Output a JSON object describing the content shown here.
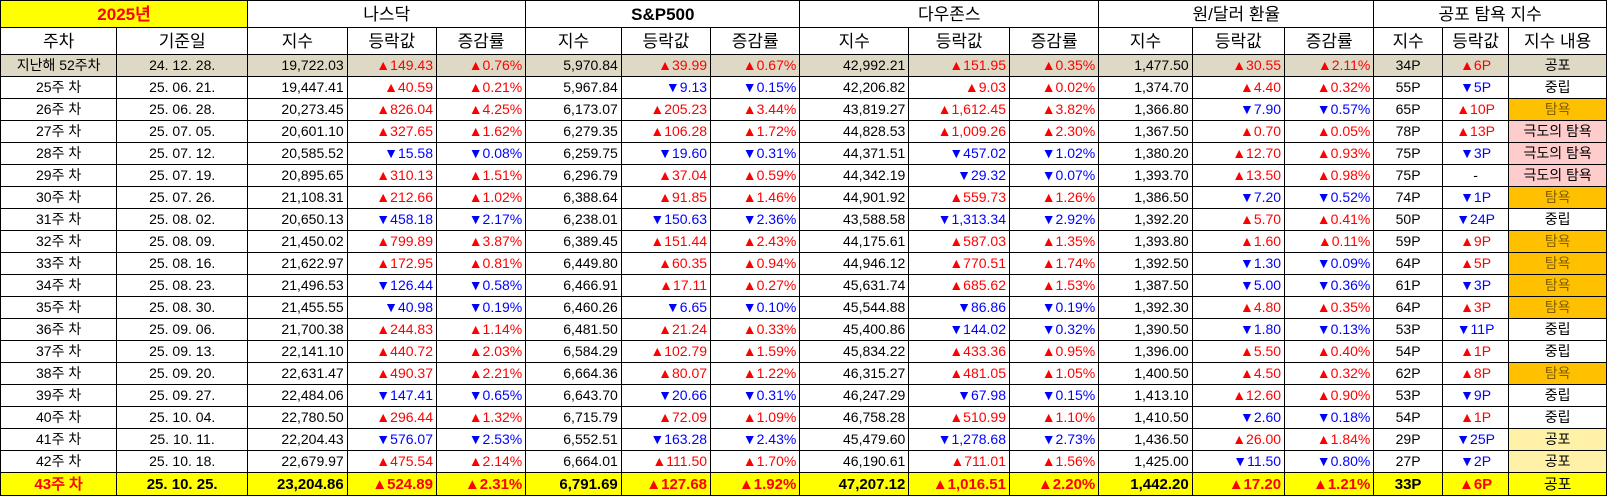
{
  "header": {
    "year_label": "2025년",
    "groups": [
      "나스닥",
      "S&P500",
      "다우존스",
      "원/달러 환율",
      "공포 탐욕 지수"
    ],
    "week_col": "주차",
    "date_col": "기준일",
    "index_col": "지수",
    "change_col": "등락값",
    "rate_col": "증감률",
    "fg_content_col": "지수 내용"
  },
  "rows": [
    {
      "week": "지난해 52주차",
      "date": "24. 12. 28.",
      "nas": [
        "19,722.03",
        "▲149.43",
        "▲0.76%"
      ],
      "sp": [
        "5,970.84",
        "▲39.99",
        "▲0.67%"
      ],
      "dow": [
        "42,992.21",
        "▲151.95",
        "▲0.35%"
      ],
      "krw": [
        "1,477.50",
        "▲30.55",
        "▲2.11%"
      ],
      "fg": [
        "34P",
        "▲6P",
        "공포"
      ],
      "mood": "fear",
      "cls": "lastyear"
    },
    {
      "week": "25주 차",
      "date": "25. 06. 21.",
      "nas": [
        "19,447.41",
        "▲40.59",
        "▲0.21%"
      ],
      "sp": [
        "5,967.84",
        "▼9.13",
        "▼0.15%"
      ],
      "dow": [
        "42,206.82",
        "▲9.03",
        "▲0.02%"
      ],
      "krw": [
        "1,374.70",
        "▲4.40",
        "▲0.32%"
      ],
      "fg": [
        "55P",
        "▼5P",
        "중립"
      ],
      "mood": "neutral"
    },
    {
      "week": "26주 차",
      "date": "25. 06. 28.",
      "nas": [
        "20,273.45",
        "▲826.04",
        "▲4.25%"
      ],
      "sp": [
        "6,173.07",
        "▲205.23",
        "▲3.44%"
      ],
      "dow": [
        "43,819.27",
        "▲1,612.45",
        "▲3.82%"
      ],
      "krw": [
        "1,366.80",
        "▼7.90",
        "▼0.57%"
      ],
      "fg": [
        "65P",
        "▲10P",
        "탐욕"
      ],
      "mood": "greed"
    },
    {
      "week": "27주 차",
      "date": "25. 07. 05.",
      "nas": [
        "20,601.10",
        "▲327.65",
        "▲1.62%"
      ],
      "sp": [
        "6,279.35",
        "▲106.28",
        "▲1.72%"
      ],
      "dow": [
        "44,828.53",
        "▲1,009.26",
        "▲2.30%"
      ],
      "krw": [
        "1,367.50",
        "▲0.70",
        "▲0.05%"
      ],
      "fg": [
        "78P",
        "▲13P",
        "극도의 탐욕"
      ],
      "mood": "extreme"
    },
    {
      "week": "28주 차",
      "date": "25. 07. 12.",
      "nas": [
        "20,585.52",
        "▼15.58",
        "▼0.08%"
      ],
      "sp": [
        "6,259.75",
        "▼19.60",
        "▼0.31%"
      ],
      "dow": [
        "44,371.51",
        "▼457.02",
        "▼1.02%"
      ],
      "krw": [
        "1,380.20",
        "▲12.70",
        "▲0.93%"
      ],
      "fg": [
        "75P",
        "▼3P",
        "극도의 탐욕"
      ],
      "mood": "extreme"
    },
    {
      "week": "29주 차",
      "date": "25. 07. 19.",
      "nas": [
        "20,895.65",
        "▲310.13",
        "▲1.51%"
      ],
      "sp": [
        "6,296.79",
        "▲37.04",
        "▲0.59%"
      ],
      "dow": [
        "44,342.19",
        "▼29.32",
        "▼0.07%"
      ],
      "krw": [
        "1,393.70",
        "▲13.50",
        "▲0.98%"
      ],
      "fg": [
        "75P",
        "-",
        "극도의 탐욕"
      ],
      "mood": "extreme"
    },
    {
      "week": "30주 차",
      "date": "25. 07. 26.",
      "nas": [
        "21,108.31",
        "▲212.66",
        "▲1.02%"
      ],
      "sp": [
        "6,388.64",
        "▲91.85",
        "▲1.46%"
      ],
      "dow": [
        "44,901.92",
        "▲559.73",
        "▲1.26%"
      ],
      "krw": [
        "1,386.50",
        "▼7.20",
        "▼0.52%"
      ],
      "fg": [
        "74P",
        "▼1P",
        "탐욕"
      ],
      "mood": "greed"
    },
    {
      "week": "31주 차",
      "date": "25. 08. 02.",
      "nas": [
        "20,650.13",
        "▼458.18",
        "▼2.17%"
      ],
      "sp": [
        "6,238.01",
        "▼150.63",
        "▼2.36%"
      ],
      "dow": [
        "43,588.58",
        "▼1,313.34",
        "▼2.92%"
      ],
      "krw": [
        "1,392.20",
        "▲5.70",
        "▲0.41%"
      ],
      "fg": [
        "50P",
        "▼24P",
        "중립"
      ],
      "mood": "neutral"
    },
    {
      "week": "32주 차",
      "date": "25. 08. 09.",
      "nas": [
        "21,450.02",
        "▲799.89",
        "▲3.87%"
      ],
      "sp": [
        "6,389.45",
        "▲151.44",
        "▲2.43%"
      ],
      "dow": [
        "44,175.61",
        "▲587.03",
        "▲1.35%"
      ],
      "krw": [
        "1,393.80",
        "▲1.60",
        "▲0.11%"
      ],
      "fg": [
        "59P",
        "▲9P",
        "탐욕"
      ],
      "mood": "greed"
    },
    {
      "week": "33주 차",
      "date": "25. 08. 16.",
      "nas": [
        "21,622.97",
        "▲172.95",
        "▲0.81%"
      ],
      "sp": [
        "6,449.80",
        "▲60.35",
        "▲0.94%"
      ],
      "dow": [
        "44,946.12",
        "▲770.51",
        "▲1.74%"
      ],
      "krw": [
        "1,392.50",
        "▼1.30",
        "▼0.09%"
      ],
      "fg": [
        "64P",
        "▲5P",
        "탐욕"
      ],
      "mood": "greed"
    },
    {
      "week": "34주 차",
      "date": "25. 08. 23.",
      "nas": [
        "21,496.53",
        "▼126.44",
        "▼0.58%"
      ],
      "sp": [
        "6,466.91",
        "▲17.11",
        "▲0.27%"
      ],
      "dow": [
        "45,631.74",
        "▲685.62",
        "▲1.53%"
      ],
      "krw": [
        "1,387.50",
        "▼5.00",
        "▼0.36%"
      ],
      "fg": [
        "61P",
        "▼3P",
        "탐욕"
      ],
      "mood": "greed"
    },
    {
      "week": "35주 차",
      "date": "25. 08. 30.",
      "nas": [
        "21,455.55",
        "▼40.98",
        "▼0.19%"
      ],
      "sp": [
        "6,460.26",
        "▼6.65",
        "▼0.10%"
      ],
      "dow": [
        "45,544.88",
        "▼86.86",
        "▼0.19%"
      ],
      "krw": [
        "1,392.30",
        "▲4.80",
        "▲0.35%"
      ],
      "fg": [
        "64P",
        "▲3P",
        "탐욕"
      ],
      "mood": "greed"
    },
    {
      "week": "36주 차",
      "date": "25. 09. 06.",
      "nas": [
        "21,700.38",
        "▲244.83",
        "▲1.14%"
      ],
      "sp": [
        "6,481.50",
        "▲21.24",
        "▲0.33%"
      ],
      "dow": [
        "45,400.86",
        "▼144.02",
        "▼0.32%"
      ],
      "krw": [
        "1,390.50",
        "▼1.80",
        "▼0.13%"
      ],
      "fg": [
        "53P",
        "▼11P",
        "중립"
      ],
      "mood": "neutral"
    },
    {
      "week": "37주 차",
      "date": "25. 09. 13.",
      "nas": [
        "22,141.10",
        "▲440.72",
        "▲2.03%"
      ],
      "sp": [
        "6,584.29",
        "▲102.79",
        "▲1.59%"
      ],
      "dow": [
        "45,834.22",
        "▲433.36",
        "▲0.95%"
      ],
      "krw": [
        "1,396.00",
        "▲5.50",
        "▲0.40%"
      ],
      "fg": [
        "54P",
        "▲1P",
        "중립"
      ],
      "mood": "neutral"
    },
    {
      "week": "38주 차",
      "date": "25. 09. 20.",
      "nas": [
        "22,631.47",
        "▲490.37",
        "▲2.21%"
      ],
      "sp": [
        "6,664.36",
        "▲80.07",
        "▲1.22%"
      ],
      "dow": [
        "46,315.27",
        "▲481.05",
        "▲1.05%"
      ],
      "krw": [
        "1,400.50",
        "▲4.50",
        "▲0.32%"
      ],
      "fg": [
        "62P",
        "▲8P",
        "탐욕"
      ],
      "mood": "greed"
    },
    {
      "week": "39주 차",
      "date": "25. 09. 27.",
      "nas": [
        "22,484.06",
        "▼147.41",
        "▼0.65%"
      ],
      "sp": [
        "6,643.70",
        "▼20.66",
        "▼0.31%"
      ],
      "dow": [
        "46,247.29",
        "▼67.98",
        "▼0.15%"
      ],
      "krw": [
        "1,413.10",
        "▲12.60",
        "▲0.90%"
      ],
      "fg": [
        "53P",
        "▼9P",
        "중립"
      ],
      "mood": "neutral"
    },
    {
      "week": "40주 차",
      "date": "25. 10. 04.",
      "nas": [
        "22,780.50",
        "▲296.44",
        "▲1.32%"
      ],
      "sp": [
        "6,715.79",
        "▲72.09",
        "▲1.09%"
      ],
      "dow": [
        "46,758.28",
        "▲510.99",
        "▲1.10%"
      ],
      "krw": [
        "1,410.50",
        "▼2.60",
        "▼0.18%"
      ],
      "fg": [
        "54P",
        "▲1P",
        "중립"
      ],
      "mood": "neutral"
    },
    {
      "week": "41주 차",
      "date": "25. 10. 11.",
      "nas": [
        "22,204.43",
        "▼576.07",
        "▼2.53%"
      ],
      "sp": [
        "6,552.51",
        "▼163.28",
        "▼2.43%"
      ],
      "dow": [
        "45,479.60",
        "▼1,278.68",
        "▼2.73%"
      ],
      "krw": [
        "1,436.50",
        "▲26.00",
        "▲1.84%"
      ],
      "fg": [
        "29P",
        "▼25P",
        "공포"
      ],
      "mood": "fear"
    },
    {
      "week": "42주 차",
      "date": "25. 10. 18.",
      "nas": [
        "22,679.97",
        "▲475.54",
        "▲2.14%"
      ],
      "sp": [
        "6,664.01",
        "▲111.50",
        "▲1.70%"
      ],
      "dow": [
        "46,190.61",
        "▲711.01",
        "▲1.56%"
      ],
      "krw": [
        "1,425.00",
        "▼11.50",
        "▼0.80%"
      ],
      "fg": [
        "27P",
        "▼2P",
        "공포"
      ],
      "mood": "fear"
    },
    {
      "week": "43주 차",
      "date": "25. 10. 25.",
      "nas": [
        "23,204.86",
        "▲524.89",
        "▲2.31%"
      ],
      "sp": [
        "6,791.69",
        "▲127.68",
        "▲1.92%"
      ],
      "dow": [
        "47,207.12",
        "▲1,016.51",
        "▲2.20%"
      ],
      "krw": [
        "1,442.20",
        "▲17.20",
        "▲1.21%"
      ],
      "fg": [
        "33P",
        "▲6P",
        "공포"
      ],
      "mood": "fear",
      "cls": "current"
    }
  ]
}
